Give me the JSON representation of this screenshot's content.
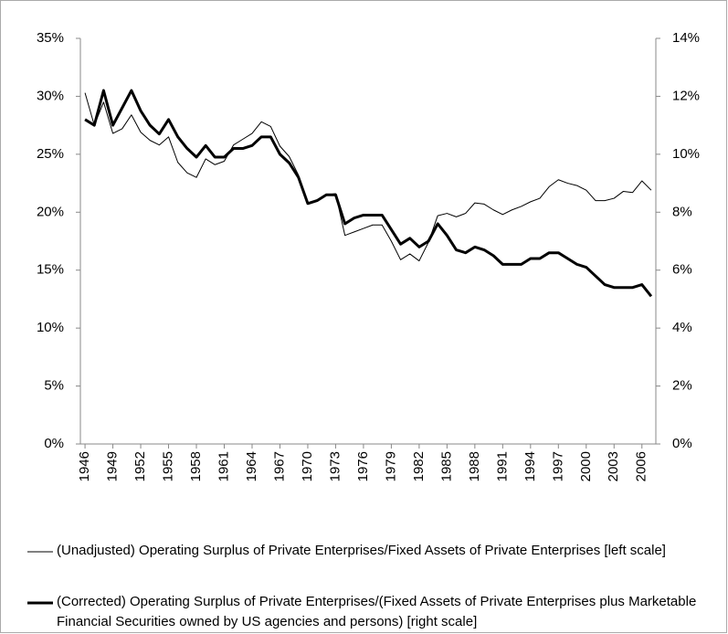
{
  "chart_data": {
    "type": "line",
    "x": [
      1946,
      1947,
      1948,
      1949,
      1950,
      1951,
      1952,
      1953,
      1954,
      1955,
      1956,
      1957,
      1958,
      1959,
      1960,
      1961,
      1962,
      1963,
      1964,
      1965,
      1966,
      1967,
      1968,
      1969,
      1970,
      1971,
      1972,
      1973,
      1974,
      1975,
      1976,
      1977,
      1978,
      1979,
      1980,
      1981,
      1982,
      1983,
      1984,
      1985,
      1986,
      1987,
      1988,
      1989,
      1990,
      1991,
      1992,
      1993,
      1994,
      1995,
      1996,
      1997,
      1998,
      1999,
      2000,
      2001,
      2002,
      2003,
      2004,
      2005,
      2006,
      2007
    ],
    "xlim": [
      1945.5,
      2007.5
    ],
    "xticks": [
      1946,
      1949,
      1952,
      1955,
      1958,
      1961,
      1964,
      1967,
      1970,
      1973,
      1976,
      1979,
      1982,
      1985,
      1988,
      1991,
      1994,
      1997,
      2000,
      2003,
      2006
    ],
    "ylim": [
      0,
      35
    ],
    "yticks": [
      {
        "value": 0,
        "label": "0%"
      },
      {
        "value": 5,
        "label": "5%"
      },
      {
        "value": 10,
        "label": "10%"
      },
      {
        "value": 15,
        "label": "15%"
      },
      {
        "value": 20,
        "label": "20%"
      },
      {
        "value": 25,
        "label": "25%"
      },
      {
        "value": 30,
        "label": "30%"
      },
      {
        "value": 35,
        "label": "35%"
      }
    ],
    "y2lim": [
      0,
      14
    ],
    "y2ticks": [
      {
        "value": 0,
        "label": "0%"
      },
      {
        "value": 2,
        "label": "2%"
      },
      {
        "value": 4,
        "label": "4%"
      },
      {
        "value": 6,
        "label": "6%"
      },
      {
        "value": 8,
        "label": "8%"
      },
      {
        "value": 10,
        "label": "10%"
      },
      {
        "value": 12,
        "label": "12%"
      },
      {
        "value": 14,
        "label": "14%"
      }
    ],
    "grid": false,
    "series": [
      {
        "name": "(Unadjusted) Operating Surplus of Private Enterprises/Fixed Assets of Private Enterprises [left scale]",
        "color": "#000000",
        "axis": "y",
        "values": [
          30.3,
          27.5,
          29.5,
          26.8,
          27.2,
          28.4,
          26.9,
          26.2,
          25.8,
          26.5,
          24.3,
          23.4,
          23.0,
          24.6,
          24.1,
          24.4,
          25.8,
          26.3,
          26.8,
          27.8,
          27.4,
          25.7,
          24.8,
          23.2,
          20.7,
          21.0,
          21.5,
          21.6,
          18.0,
          18.3,
          18.6,
          18.9,
          18.9,
          17.5,
          15.9,
          16.4,
          15.8,
          17.4,
          19.7,
          19.9,
          19.6,
          19.9,
          20.8,
          20.7,
          20.2,
          19.8,
          20.2,
          20.5,
          20.9,
          21.2,
          22.2,
          22.8,
          22.5,
          22.3,
          21.9,
          21.0,
          21.0,
          21.2,
          21.8,
          21.7,
          22.7,
          21.9
        ]
      },
      {
        "name": "(Corrected) Operating Surplus of Private Enterprises/(Fixed Assets of Private Enterprises plus Marketable Financial Securities owned by US agencies and persons) [right scale]",
        "color": "#000000",
        "axis": "y2",
        "values": [
          11.2,
          11.0,
          12.2,
          11.0,
          11.6,
          12.2,
          11.5,
          11.0,
          10.7,
          11.2,
          10.6,
          10.2,
          9.9,
          10.3,
          9.9,
          9.9,
          10.2,
          10.2,
          10.3,
          10.6,
          10.6,
          10.0,
          9.7,
          9.2,
          8.3,
          8.4,
          8.6,
          8.6,
          7.6,
          7.8,
          7.9,
          7.9,
          7.9,
          7.4,
          6.9,
          7.1,
          6.8,
          7.0,
          7.6,
          7.2,
          6.7,
          6.6,
          6.8,
          6.7,
          6.5,
          6.2,
          6.2,
          6.2,
          6.4,
          6.4,
          6.6,
          6.6,
          6.4,
          6.2,
          6.1,
          5.8,
          5.5,
          5.4,
          5.4,
          5.4,
          5.5,
          5.1
        ]
      }
    ]
  }
}
